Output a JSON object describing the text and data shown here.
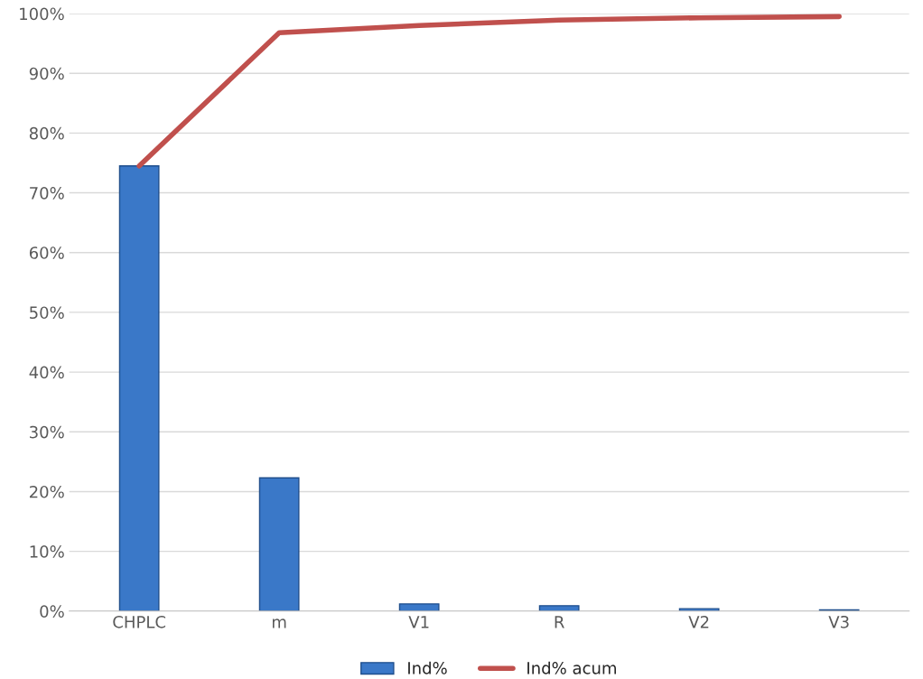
{
  "chart_data": {
    "type": "bar",
    "categories": [
      "CHPLC",
      "m",
      "V1",
      "R",
      "V2",
      "V3"
    ],
    "series": [
      {
        "name": "Ind%",
        "color": "#3a78c8",
        "values": [
          74.5,
          22.3,
          1.2,
          0.9,
          0.4,
          0.2
        ]
      },
      {
        "name": "Ind% acum",
        "type": "line",
        "color": "#c0504d",
        "values": [
          74.5,
          96.8,
          98.0,
          98.9,
          99.3,
          99.5
        ]
      }
    ],
    "ylim": [
      0,
      100
    ],
    "yticks": [
      {
        "value": 0,
        "label": "0%"
      },
      {
        "value": 10,
        "label": "10%"
      },
      {
        "value": 20,
        "label": "20%"
      },
      {
        "value": 30,
        "label": "30%"
      },
      {
        "value": 40,
        "label": "40%"
      },
      {
        "value": 50,
        "label": "50%"
      },
      {
        "value": 60,
        "label": "60%"
      },
      {
        "value": 70,
        "label": "70%"
      },
      {
        "value": 80,
        "label": "80%"
      },
      {
        "value": 90,
        "label": "90%"
      },
      {
        "value": 100,
        "label": "100%"
      }
    ],
    "grid": "y",
    "legend": "bottom",
    "marker": "none",
    "line_style": "solid"
  }
}
